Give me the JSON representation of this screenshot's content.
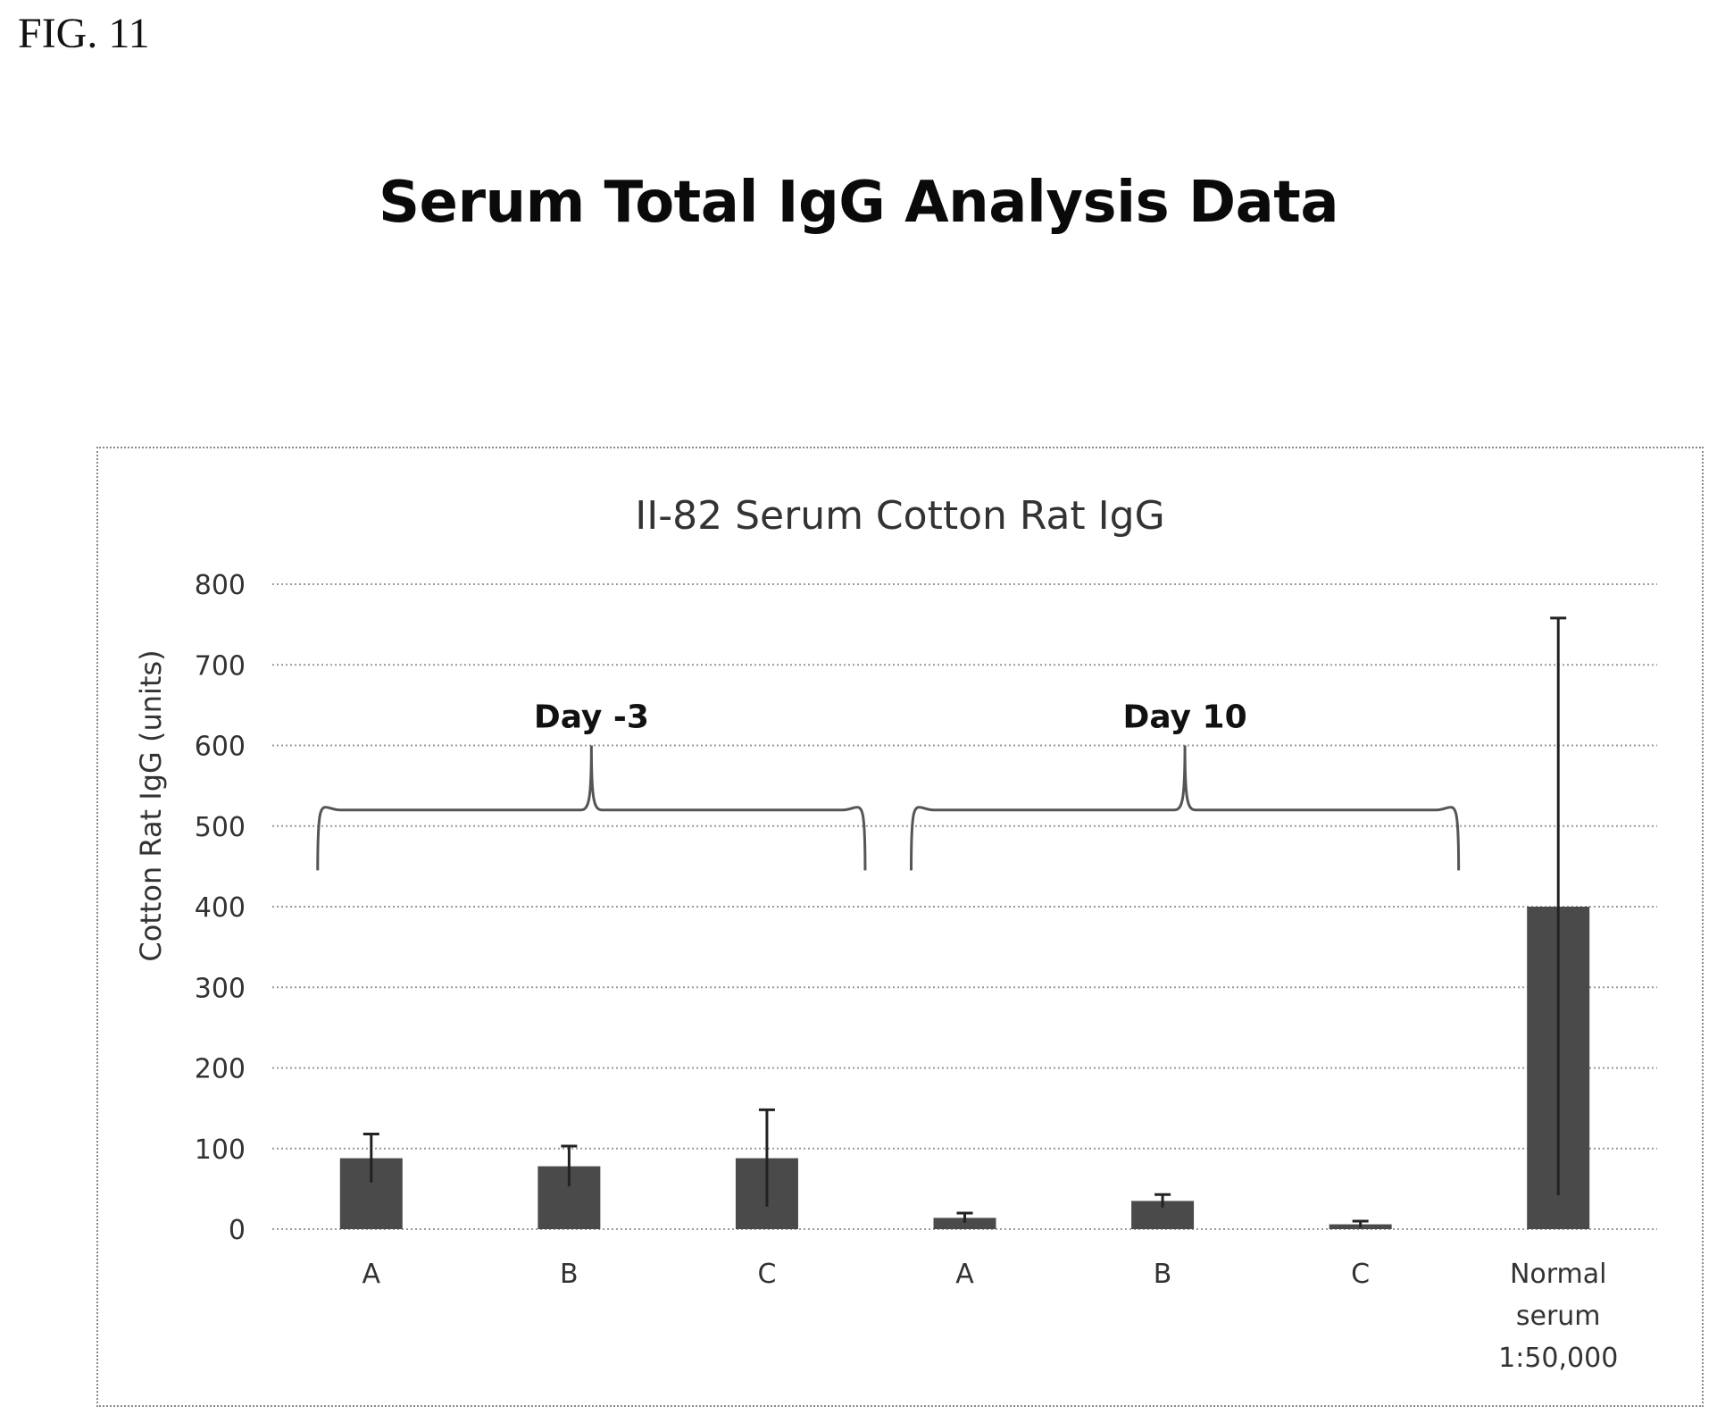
{
  "figure_label": "FIG. 11",
  "page_heading": "Serum Total IgG Analysis Data",
  "chart_data": {
    "type": "bar",
    "title": "II-82 Serum Cotton Rat IgG",
    "xlabel": "",
    "ylabel": "Cotton Rat IgG (units)",
    "ylim": [
      0,
      800
    ],
    "yticks": [
      0,
      100,
      200,
      300,
      400,
      500,
      600,
      700,
      800
    ],
    "grid": true,
    "categories": [
      {
        "lines": [
          "A"
        ]
      },
      {
        "lines": [
          "B"
        ]
      },
      {
        "lines": [
          "C"
        ]
      },
      {
        "lines": [
          "A"
        ]
      },
      {
        "lines": [
          "B"
        ]
      },
      {
        "lines": [
          "C"
        ]
      },
      {
        "lines": [
          "Normal",
          "serum",
          "1:50,000"
        ]
      }
    ],
    "values": [
      88,
      78,
      88,
      14,
      35,
      6,
      400
    ],
    "errors": [
      30,
      25,
      60,
      6,
      8,
      4,
      358
    ],
    "groups": [
      {
        "label": "Day -3",
        "from": 0,
        "to": 2
      },
      {
        "label": "Day 10",
        "from": 3,
        "to": 5
      }
    ],
    "colors": {
      "bar": "#4a4a4a",
      "grid": "#9a9a9a"
    }
  }
}
